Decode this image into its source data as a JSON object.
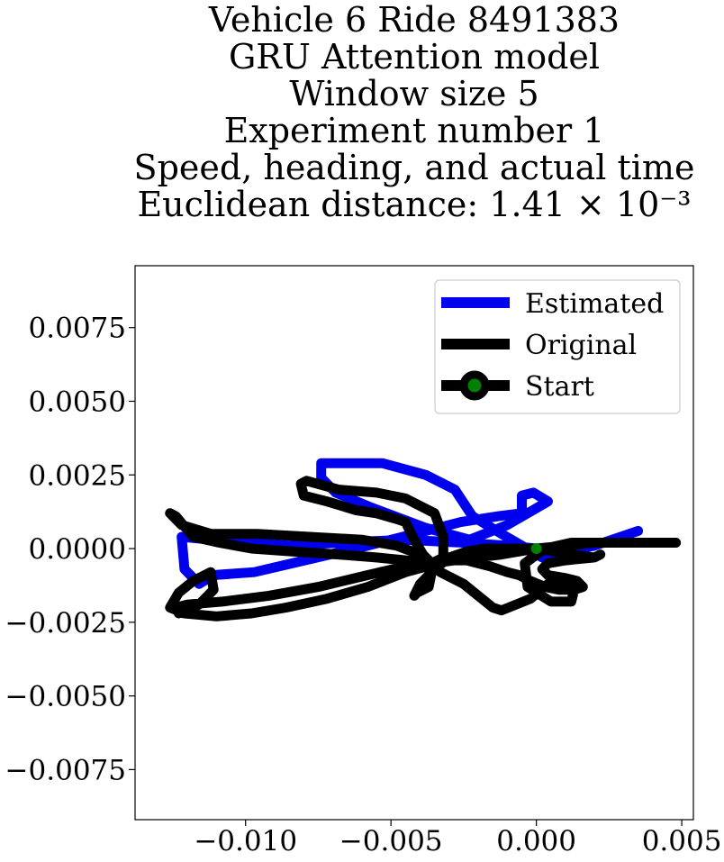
{
  "title_lines": [
    "Vehicle 6 Ride 8491383",
    "GRU Attention model",
    "Window size 5",
    "Experiment number 1",
    "Speed, heading, and actual time",
    "Euclidean distance: 1.41 × 10⁻³"
  ],
  "colors": {
    "estimated": "#0000ee",
    "original": "#000000",
    "start_marker": "#008000"
  },
  "chart_data": {
    "type": "line",
    "title": "Vehicle 6 Ride 8491383 / GRU Attention model / Window size 5 / Experiment number 1 / Speed, heading, and actual time / Euclidean distance: 1.41 × 10⁻³",
    "xlabel": "",
    "ylabel": "",
    "xlim": [
      -0.0138,
      0.0054
    ],
    "ylim": [
      -0.0092,
      0.0096
    ],
    "xticks": [
      -0.01,
      -0.005,
      0.0,
      0.005
    ],
    "xtick_labels": [
      "−0.010",
      "−0.005",
      "0.000",
      "0.005"
    ],
    "yticks": [
      0.0075,
      0.005,
      0.0025,
      0.0,
      -0.0025,
      -0.005,
      -0.0075
    ],
    "ytick_labels": [
      "0.0075",
      "0.0050",
      "0.0025",
      "0.0000",
      "−0.0025",
      "−0.0050",
      "−0.0075"
    ],
    "grid": false,
    "legend_position": "top-right",
    "legend": [
      "Estimated",
      "Original",
      "Start"
    ],
    "series": [
      {
        "name": "Estimated",
        "color": "#0000ee",
        "x": [
          0,
          -0.001,
          -0.0025,
          -0.0045,
          -0.0068,
          -0.0085,
          -0.0101,
          -0.0122,
          -0.0121,
          -0.0116,
          -0.0111,
          -0.0097,
          -0.0084,
          -0.0058,
          -0.0038,
          -0.0026,
          -0.0013,
          -0.0005,
          -0.0005,
          -0.0001,
          0.0004,
          -0.001,
          -0.0023,
          -0.0038,
          -0.0057,
          -0.0069,
          -0.0074,
          -0.0074,
          -0.0053,
          -0.0038,
          -0.0028,
          -0.0022,
          -0.0012,
          0.0002,
          0.001,
          0.002,
          0.0035
        ],
        "y": [
          0,
          0.0001,
          0.0002,
          0.0003,
          0.0002,
          0.0001,
          0.0002,
          0.0004,
          -0.0007,
          -0.0012,
          -0.0009,
          -0.0008,
          -0.0005,
          0.0001,
          0.0006,
          0.0009,
          0.0011,
          0.0012,
          0.0018,
          0.0019,
          0.0016,
          0.0008,
          0.0003,
          0.0007,
          0.0014,
          0.0019,
          0.0024,
          0.0029,
          0.0029,
          0.0025,
          0.002,
          0.0011,
          0.0005,
          -0.0003,
          -0.0001,
          0.0001,
          0.0006
        ]
      },
      {
        "name": "Original",
        "color": "#000000",
        "x": [
          0,
          0.001,
          0.002,
          0.003,
          0.004,
          0.0048,
          0.0038,
          0.0025,
          0.0012,
          0.0003,
          -0.0004,
          -0.0003,
          0.0005,
          0.0012,
          0.0013,
          0.0004,
          -0.0002,
          -0.0012,
          -0.0015,
          -0.0025,
          -0.0033,
          -0.0039,
          -0.0042,
          -0.0045,
          -0.0048,
          -0.0055,
          -0.0062,
          -0.0072,
          -0.008,
          -0.0081,
          -0.0079,
          -0.0068,
          -0.0055,
          -0.0045,
          -0.0035,
          -0.0032,
          -0.0032,
          -0.0036,
          -0.0045,
          -0.0055,
          -0.0068,
          -0.0084,
          -0.0098,
          -0.0109,
          -0.0118,
          -0.0124,
          -0.0126,
          -0.0122,
          -0.0112,
          -0.0096,
          -0.0078,
          -0.006,
          -0.0048,
          -0.004,
          -0.0036,
          -0.0037,
          -0.0041,
          -0.0042,
          -0.004,
          -0.0035,
          -0.003,
          -0.0024,
          -0.0018,
          -0.0012,
          -0.0006,
          0,
          0.0006,
          0.0012,
          0.002,
          0.0022,
          0.002,
          0.001,
          0.0004,
          0.0002,
          0.0004,
          0.001,
          0.0014,
          0.0016,
          0.0013,
          0.0008,
          0.0003,
          -0.0002,
          -0.0006,
          -0.001,
          -0.0016,
          -0.002,
          -0.0024,
          -0.0028,
          -0.0036,
          -0.0045,
          -0.0058,
          -0.0075,
          -0.0092,
          -0.0108,
          -0.012,
          -0.0124,
          -0.0123,
          -0.0116,
          -0.0111,
          -0.0112,
          -0.0118,
          -0.0123,
          -0.0126,
          -0.0121,
          -0.011,
          -0.0098,
          -0.0086,
          -0.0072,
          -0.0058,
          -0.0045,
          -0.003,
          -0.0012,
          0
        ],
        "y": [
          0,
          0.0001,
          0.0002,
          0.0002,
          0.0002,
          0.0002,
          0.0002,
          0.0002,
          0.0002,
          0,
          -0.0005,
          -0.0013,
          -0.0018,
          -0.0018,
          -0.0014,
          -0.0012,
          -0.0017,
          -0.0021,
          -0.002,
          -0.0012,
          -0.0008,
          -0.0002,
          0.0003,
          0.0009,
          0.001,
          0.0012,
          0.0013,
          0.0016,
          0.0018,
          0.0022,
          0.0023,
          0.002,
          0.0019,
          0.0017,
          0.0012,
          0.0004,
          -0.0003,
          -0.0005,
          -0.0004,
          -0.0003,
          -0.0002,
          -0.0001,
          0,
          0.0002,
          0.0004,
          0.0011,
          0.0012,
          0.0008,
          0.0005,
          0.0005,
          0.0004,
          0.0003,
          0.0001,
          -0.0002,
          -0.0008,
          -0.0013,
          -0.0015,
          -0.0016,
          -0.0012,
          -0.0007,
          -0.0003,
          -0.0001,
          0,
          0,
          0,
          0,
          -0.0001,
          -0.0002,
          -0.0003,
          -0.0002,
          -0.0003,
          -0.0004,
          -0.0005,
          -0.0007,
          -0.0009,
          -0.001,
          -0.0011,
          -0.0013,
          -0.0014,
          -0.0014,
          -0.0013,
          -0.0011,
          -0.0009,
          -0.0008,
          -0.0006,
          -0.0005,
          -0.0004,
          -0.0004,
          -0.0005,
          -0.0006,
          -0.0009,
          -0.0013,
          -0.0016,
          -0.0018,
          -0.0019,
          -0.002,
          -0.0022,
          -0.0019,
          -0.0014,
          -0.0008,
          -0.0011,
          -0.0015,
          -0.002,
          -0.0022,
          -0.0023,
          -0.0022,
          -0.002,
          -0.0017,
          -0.0013,
          -0.0008,
          -0.0004,
          -0.0002,
          0
        ]
      }
    ],
    "start_point": {
      "label": "Start",
      "x": 0,
      "y": 0
    }
  }
}
